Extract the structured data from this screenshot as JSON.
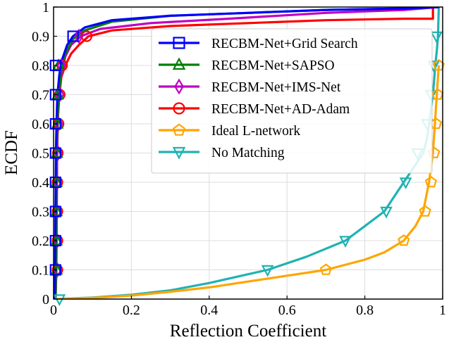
{
  "chart_data": {
    "type": "line",
    "title": "",
    "xlabel": "Reflection Coefficient",
    "ylabel": "ECDF",
    "xlim": [
      0,
      1
    ],
    "ylim": [
      0,
      1
    ],
    "xticks": [
      0,
      0.2,
      0.4,
      0.6,
      0.8,
      1
    ],
    "xtick_labels": [
      "0",
      "0.2",
      "0.4",
      "0.6",
      "0.8",
      "1"
    ],
    "yticks": [
      0,
      0.1,
      0.2,
      0.3,
      0.4,
      0.5,
      0.6,
      0.7,
      0.8,
      0.9,
      1
    ],
    "ytick_labels": [
      "0",
      "0.1",
      "0.2",
      "0.3",
      "0.4",
      "0.5",
      "0.6",
      "0.7",
      "0.8",
      "0.9",
      "1"
    ],
    "grid": true,
    "legend_position": "upper-right",
    "series": [
      {
        "name": "RECBM-Net+Grid Search",
        "color": "#0000ff",
        "marker": "square",
        "x": [
          0.003,
          0.004,
          0.005,
          0.006,
          0.008,
          0.01,
          0.015,
          0.022,
          0.035,
          0.05,
          0.08,
          0.15,
          0.3,
          0.5,
          0.7,
          0.9,
          0.99
        ],
        "y": [
          0,
          0.1,
          0.3,
          0.5,
          0.62,
          0.7,
          0.77,
          0.82,
          0.87,
          0.9,
          0.93,
          0.955,
          0.97,
          0.98,
          0.99,
          0.995,
          1.0
        ],
        "marker_x": [
          0.005,
          0.005,
          0.005,
          0.005,
          0.005,
          0.005,
          0.005,
          0.005,
          0.05
        ],
        "marker_y": [
          0.1,
          0.2,
          0.3,
          0.4,
          0.5,
          0.6,
          0.7,
          0.8,
          0.9
        ]
      },
      {
        "name": "RECBM-Net+SAPSO",
        "color": "#008000",
        "marker": "triangle-up",
        "x": [
          0.005,
          0.006,
          0.007,
          0.008,
          0.01,
          0.013,
          0.02,
          0.03,
          0.05,
          0.08,
          0.15,
          0.3,
          0.5,
          0.7,
          0.9,
          0.99
        ],
        "y": [
          0,
          0.1,
          0.3,
          0.5,
          0.62,
          0.7,
          0.78,
          0.84,
          0.89,
          0.92,
          0.95,
          0.97,
          0.98,
          0.99,
          0.995,
          1.0
        ],
        "marker_x": [
          0.008,
          0.008,
          0.008,
          0.008,
          0.009,
          0.01,
          0.011,
          0.013
        ],
        "marker_y": [
          0.1,
          0.2,
          0.3,
          0.4,
          0.5,
          0.6,
          0.7,
          0.8
        ]
      },
      {
        "name": "RECBM-Net+IMS-Net",
        "color": "#c000c0",
        "marker": "diamond",
        "x": [
          0.005,
          0.007,
          0.008,
          0.009,
          0.011,
          0.014,
          0.02,
          0.03,
          0.045,
          0.07,
          0.12,
          0.25,
          0.45,
          0.7,
          0.9,
          0.99
        ],
        "y": [
          0,
          0.1,
          0.3,
          0.5,
          0.62,
          0.7,
          0.77,
          0.83,
          0.87,
          0.9,
          0.925,
          0.945,
          0.96,
          0.98,
          0.99,
          1.0
        ],
        "marker_x": [
          0.01,
          0.01,
          0.01,
          0.01,
          0.012,
          0.013,
          0.016,
          0.02,
          0.065
        ],
        "marker_y": [
          0.1,
          0.2,
          0.3,
          0.4,
          0.5,
          0.6,
          0.7,
          0.8,
          0.9
        ]
      },
      {
        "name": "RECBM-Net+AD-Adam",
        "color": "#ff0000",
        "marker": "circle",
        "x": [
          0.005,
          0.007,
          0.008,
          0.009,
          0.011,
          0.015,
          0.02,
          0.03,
          0.045,
          0.065,
          0.09,
          0.15,
          0.3,
          0.5,
          0.7,
          0.9,
          0.975,
          0.975
        ],
        "y": [
          0,
          0.1,
          0.3,
          0.5,
          0.62,
          0.7,
          0.76,
          0.8,
          0.84,
          0.87,
          0.9,
          0.92,
          0.935,
          0.945,
          0.955,
          0.96,
          0.96,
          1.0
        ],
        "marker_x": [
          0.01,
          0.01,
          0.01,
          0.01,
          0.011,
          0.013,
          0.016,
          0.022,
          0.085
        ],
        "marker_y": [
          0.1,
          0.2,
          0.3,
          0.4,
          0.5,
          0.6,
          0.7,
          0.8,
          0.9
        ]
      },
      {
        "name": "Ideal L-network",
        "color": "#ffa500",
        "marker": "pentagon",
        "x": [
          0,
          0.1,
          0.2,
          0.3,
          0.4,
          0.5,
          0.6,
          0.7,
          0.8,
          0.85,
          0.9,
          0.93,
          0.95,
          0.965,
          0.975,
          0.98,
          0.985,
          0.99
        ],
        "y": [
          0,
          0.004,
          0.012,
          0.025,
          0.04,
          0.06,
          0.08,
          0.1,
          0.135,
          0.16,
          0.2,
          0.25,
          0.3,
          0.4,
          0.5,
          0.6,
          0.7,
          0.8
        ],
        "marker_x": [
          0.7,
          0.9,
          0.955,
          0.97,
          0.978,
          0.983,
          0.987,
          0.99
        ],
        "marker_y": [
          0.1,
          0.2,
          0.3,
          0.4,
          0.5,
          0.6,
          0.7,
          0.8
        ]
      },
      {
        "name": "No Matching",
        "color": "#20b2b2",
        "marker": "triangle-down",
        "x": [
          0.0,
          0.1,
          0.2,
          0.3,
          0.4,
          0.5,
          0.55,
          0.65,
          0.75,
          0.8,
          0.85,
          0.89,
          0.91,
          0.93,
          0.95,
          0.96,
          0.965,
          0.97,
          0.975,
          0.978,
          0.981,
          0.985,
          0.988,
          0.99
        ],
        "y": [
          0,
          0.005,
          0.015,
          0.03,
          0.055,
          0.085,
          0.1,
          0.145,
          0.2,
          0.25,
          0.3,
          0.38,
          0.42,
          0.46,
          0.5,
          0.55,
          0.6,
          0.65,
          0.7,
          0.75,
          0.8,
          0.85,
          0.9,
          1.0
        ],
        "marker_x": [
          0.015,
          0.55,
          0.75,
          0.855,
          0.905,
          0.935,
          0.96,
          0.97,
          0.977,
          0.984
        ],
        "marker_y": [
          0.0,
          0.1,
          0.2,
          0.3,
          0.4,
          0.5,
          0.6,
          0.7,
          0.8,
          0.9
        ]
      }
    ]
  }
}
